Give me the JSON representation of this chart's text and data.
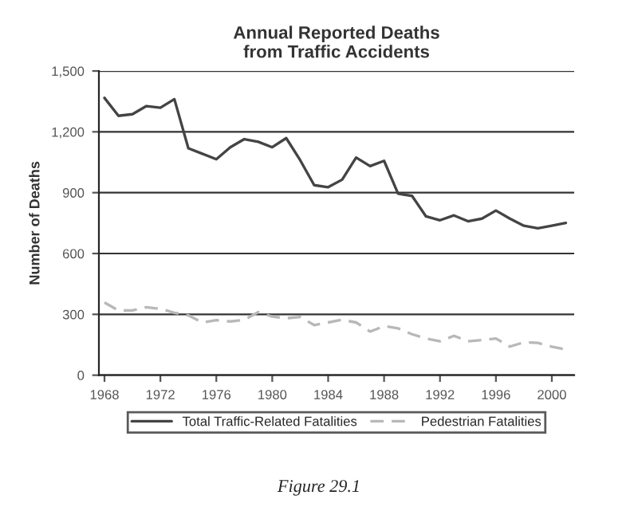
{
  "chart_data": {
    "type": "line",
    "title": "Annual Reported Deaths\nfrom Traffic Accidents",
    "ylabel": "Number of Deaths",
    "x": [
      1968,
      1969,
      1970,
      1971,
      1972,
      1973,
      1974,
      1975,
      1976,
      1977,
      1978,
      1979,
      1980,
      1981,
      1982,
      1983,
      1984,
      1985,
      1986,
      1987,
      1988,
      1989,
      1990,
      1991,
      1992,
      1993,
      1994,
      1995,
      1996,
      1997,
      1998,
      1999,
      2000,
      2001
    ],
    "series": [
      {
        "name": "Total Traffic-Related Fatalities",
        "color": "#444444",
        "line_style": "solid",
        "values": [
          1367,
          1279,
          1287,
          1327,
          1319,
          1361,
          1119,
          1092,
          1065,
          1124,
          1164,
          1151,
          1124,
          1169,
          1060,
          937,
          927,
          964,
          1073,
          1031,
          1057,
          895,
          884,
          783,
          764,
          788,
          759,
          772,
          812,
          772,
          737,
          724,
          737,
          751
        ]
      },
      {
        "name": "Pedestrian Fatalities",
        "color": "#b8b8b8",
        "line_style": "dashed",
        "values": [
          358,
          319,
          319,
          335,
          327,
          308,
          295,
          260,
          271,
          265,
          273,
          311,
          289,
          281,
          287,
          247,
          260,
          273,
          260,
          215,
          242,
          231,
          202,
          181,
          167,
          194,
          167,
          173,
          181,
          141,
          162,
          159,
          141,
          127
        ]
      }
    ],
    "xlim": [
      1967.6,
      2001.6
    ],
    "xticks": [
      1968,
      1972,
      1976,
      1980,
      1984,
      1988,
      1992,
      1996,
      2000
    ],
    "ylim": [
      0,
      1500
    ],
    "yticks": [
      {
        "value": 0,
        "label": "0"
      },
      {
        "value": 300,
        "label": "300"
      },
      {
        "value": 600,
        "label": "600"
      },
      {
        "value": 900,
        "label": "900"
      },
      {
        "value": 1200,
        "label": "1,200"
      },
      {
        "value": 1500,
        "label": "1,500"
      }
    ],
    "grid": "y",
    "legend": "bottom",
    "marker": "none",
    "annotations": [
      "Figure 29.1"
    ]
  }
}
